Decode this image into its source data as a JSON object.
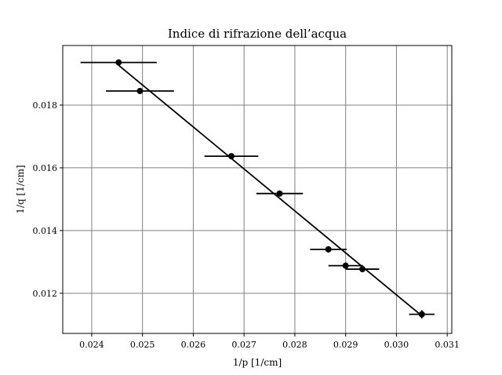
{
  "chart_data": {
    "type": "scatter",
    "title": "Indice di rifrazione dell’acqua",
    "xlabel": "1/p [1/cm]",
    "ylabel": "1/q [1/cm]",
    "xlim": [
      0.02343,
      0.03109
    ],
    "ylim": [
      0.01072,
      0.0199
    ],
    "xticks": [
      0.024,
      0.025,
      0.026,
      0.027,
      0.028,
      0.029,
      0.03,
      0.031
    ],
    "xtick_labels": [
      "0.024",
      "0.025",
      "0.026",
      "0.027",
      "0.028",
      "0.029",
      "0.030",
      "0.031"
    ],
    "yticks": [
      0.012,
      0.014,
      0.016,
      0.018
    ],
    "ytick_labels": [
      "0.012",
      "0.014",
      "0.016",
      "0.018"
    ],
    "grid": true,
    "series": [
      {
        "type": "errorbar",
        "color": "#000000",
        "points": [
          {
            "x": 0.02453,
            "y": 0.01936,
            "xerr": 0.00075,
            "yerr": 5e-05
          },
          {
            "x": 0.02495,
            "y": 0.01845,
            "xerr": 0.00067,
            "yerr": 5e-05
          },
          {
            "x": 0.02675,
            "y": 0.01637,
            "xerr": 0.00053,
            "yerr": 5e-05
          },
          {
            "x": 0.0277,
            "y": 0.01518,
            "xerr": 0.00046,
            "yerr": 8e-05
          },
          {
            "x": 0.02866,
            "y": 0.0134,
            "xerr": 0.00036,
            "yerr": 0.0001
          },
          {
            "x": 0.029,
            "y": 0.01288,
            "xerr": 0.00034,
            "yerr": 9e-05
          },
          {
            "x": 0.02933,
            "y": 0.01277,
            "xerr": 0.00033,
            "yerr": 0.0001
          },
          {
            "x": 0.0305,
            "y": 0.01133,
            "xerr": 0.00025,
            "yerr": 0.00013
          }
        ]
      },
      {
        "type": "line",
        "color": "#000000",
        "x": [
          0.02453,
          0.0305
        ],
        "y": [
          0.01927,
          0.01128
        ]
      }
    ]
  }
}
